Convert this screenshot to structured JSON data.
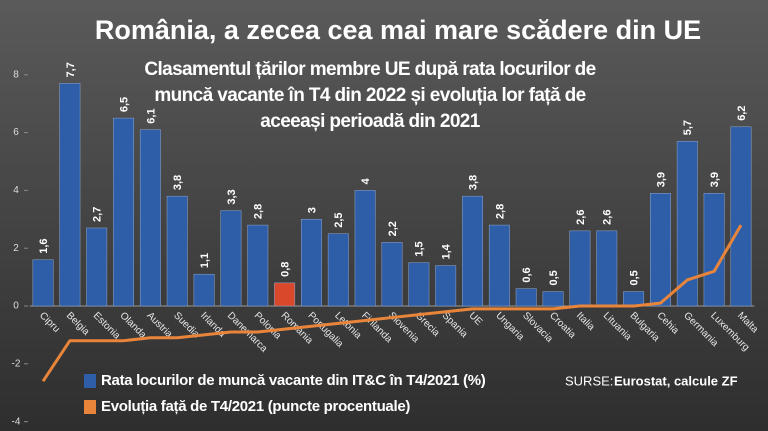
{
  "chart_data": {
    "type": "bar",
    "title": "România, a zecea cea mai mare scădere din UE",
    "subtitle": [
      "Clasamentul țărilor membre UE după rata locurilor de",
      "muncă vacante în T4 din 2022 și evoluția lor față de",
      "aceeași perioadă din 2021"
    ],
    "categories": [
      "Cipru",
      "Belgia",
      "Estonia",
      "Olanda",
      "Austria",
      "Suedia",
      "Irlanda",
      "Danemarca",
      "Polonia",
      "Romania",
      "Portugalia",
      "Letonia",
      "Finlanda",
      "Slovenia",
      "Grecia",
      "Spania",
      "UE",
      "Ungaria",
      "Slovacia",
      "Croatia",
      "Italia",
      "Lituania",
      "Bulgaria",
      "Cehia",
      "Germania",
      "Luxemburg",
      "Malta"
    ],
    "series": [
      {
        "name": "Rata locurilor de muncă vacante din IT&C în T4/2021 (%)",
        "type": "bar",
        "color": "#2f5ea8",
        "values": [
          1.6,
          7.7,
          2.7,
          6.5,
          6.1,
          3.8,
          1.1,
          3.3,
          2.8,
          0.8,
          3,
          2.5,
          4,
          2.2,
          1.5,
          1.4,
          3.8,
          2.8,
          0.6,
          0.5,
          2.6,
          2.6,
          0.5,
          3.9,
          5.7,
          3.9,
          6.2
        ],
        "value_labels": [
          "1,6",
          "7,7",
          "2,7",
          "6,5",
          "6,1",
          "3,8",
          "1,1",
          "3,3",
          "2,8",
          "0,8",
          "3",
          "2,5",
          "4",
          "2,2",
          "1,5",
          "1,4",
          "3,8",
          "2,8",
          "0,6",
          "0,5",
          "2,6",
          "2,6",
          "0,5",
          "3,9",
          "5,7",
          "3,9",
          "6,2"
        ],
        "point_colors": [
          "#2f5ea8",
          "#2f5ea8",
          "#2f5ea8",
          "#2f5ea8",
          "#2f5ea8",
          "#2f5ea8",
          "#2f5ea8",
          "#2f5ea8",
          "#2f5ea8",
          "#d9482b",
          "#2f5ea8",
          "#2f5ea8",
          "#2f5ea8",
          "#2f5ea8",
          "#2f5ea8",
          "#2f5ea8",
          "#2f5ea8",
          "#2f5ea8",
          "#2f5ea8",
          "#2f5ea8",
          "#2f5ea8",
          "#2f5ea8",
          "#2f5ea8",
          "#2f5ea8",
          "#2f5ea8",
          "#2f5ea8",
          "#2f5ea8"
        ]
      },
      {
        "name": "Evoluția față de T4/2021 (puncte procentuale)",
        "type": "line",
        "color": "#e8853a",
        "values": [
          -2.6,
          -1.2,
          -1.2,
          -1.2,
          -1.1,
          -1.1,
          -1.0,
          -0.9,
          -0.9,
          -0.8,
          -0.7,
          -0.6,
          -0.5,
          -0.4,
          -0.3,
          -0.2,
          -0.1,
          -0.1,
          -0.1,
          -0.1,
          0.0,
          0.0,
          0.0,
          0.1,
          0.9,
          1.2,
          2.8
        ]
      }
    ],
    "ylim": [
      -4.2,
      10.4
    ],
    "yticks": [
      -4,
      -2,
      0,
      2,
      4,
      6,
      8
    ],
    "grid": false,
    "source_label": "SURSE:",
    "source": "Eurostat, calcule ZF"
  }
}
